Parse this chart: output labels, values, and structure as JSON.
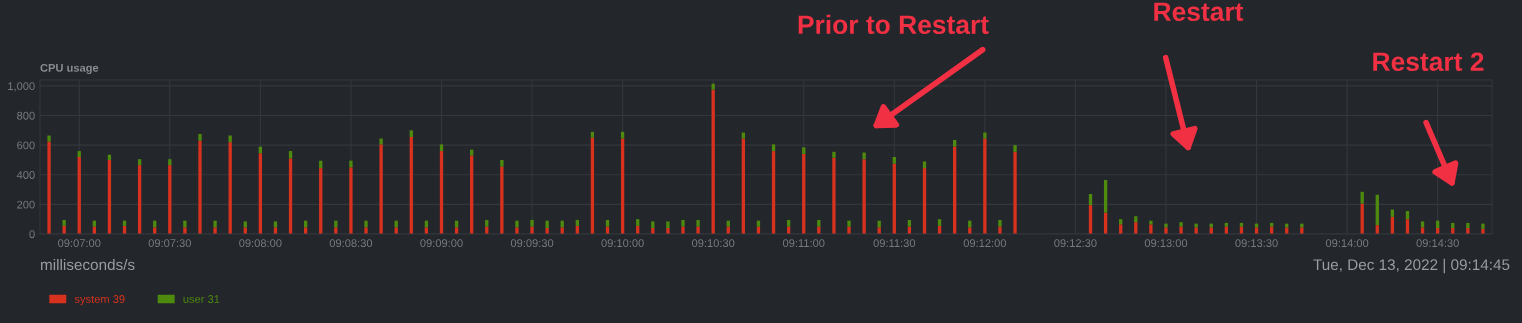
{
  "chart_data": {
    "type": "bar",
    "title": "CPU usage",
    "stacked": true,
    "categories": [
      null,
      null,
      "09:07:00",
      null,
      null,
      null,
      null,
      null,
      "09:07:30",
      null,
      null,
      null,
      null,
      null,
      "09:08:00",
      null,
      null,
      null,
      null,
      null,
      "09:08:30",
      null,
      null,
      null,
      null,
      null,
      "09:09:00",
      null,
      null,
      null,
      null,
      null,
      "09:09:30",
      null,
      null,
      null,
      null,
      null,
      "09:10:00",
      null,
      null,
      null,
      null,
      null,
      "09:10:30",
      null,
      null,
      null,
      null,
      null,
      "09:11:00",
      null,
      null,
      null,
      null,
      null,
      "09:11:30",
      null,
      null,
      null,
      null,
      null,
      "09:12:00",
      null,
      null,
      null,
      null,
      null,
      "09:12:30",
      null,
      null,
      null,
      null,
      null,
      "09:13:00",
      null,
      null,
      null,
      null,
      null,
      "09:13:30",
      null,
      null,
      null,
      null,
      null,
      "09:14:00",
      null,
      null,
      null,
      null,
      null,
      "09:14:30",
      null,
      null,
      null
    ],
    "series": [
      {
        "name": "system 39",
        "color": "#d8321f",
        "values": [
          625,
          55,
          520,
          50,
          500,
          55,
          465,
          45,
          465,
          45,
          630,
          45,
          620,
          45,
          545,
          45,
          510,
          45,
          445,
          45,
          450,
          45,
          605,
          45,
          655,
          45,
          560,
          45,
          530,
          50,
          455,
          45,
          50,
          40,
          45,
          55,
          650,
          50,
          645,
          55,
          40,
          40,
          50,
          50,
          975,
          50,
          645,
          50,
          560,
          50,
          540,
          50,
          515,
          50,
          505,
          45,
          475,
          50,
          445,
          55,
          590,
          45,
          645,
          50,
          555,
          null,
          null,
          null,
          null,
          195,
          145,
          65,
          80,
          65,
          45,
          50,
          45,
          45,
          50,
          50,
          45,
          50,
          45,
          45,
          null,
          null,
          null,
          205,
          60,
          115,
          100,
          45,
          40,
          40,
          40,
          35
        ]
      },
      {
        "name": "user 31",
        "color": "#4e8a0e",
        "values": [
          40,
          40,
          40,
          40,
          35,
          35,
          40,
          45,
          40,
          45,
          45,
          45,
          45,
          40,
          45,
          40,
          50,
          45,
          50,
          45,
          45,
          45,
          40,
          45,
          45,
          45,
          45,
          45,
          40,
          45,
          45,
          45,
          45,
          50,
          45,
          40,
          40,
          45,
          45,
          45,
          45,
          45,
          45,
          45,
          40,
          40,
          40,
          40,
          45,
          45,
          45,
          45,
          40,
          40,
          45,
          45,
          45,
          45,
          45,
          45,
          45,
          45,
          40,
          45,
          45,
          null,
          null,
          null,
          null,
          75,
          220,
          35,
          40,
          25,
          25,
          30,
          25,
          25,
          25,
          25,
          25,
          25,
          25,
          25,
          null,
          null,
          null,
          80,
          205,
          50,
          55,
          40,
          50,
          35,
          35,
          35
        ]
      }
    ],
    "ylim": [
      0,
      1040
    ],
    "yticks": [
      0,
      200,
      400,
      600,
      800,
      {
        "value": 1000,
        "label": "1,000"
      }
    ],
    "grid": true,
    "legend": "bottom left",
    "annotations": [
      "Prior to Restart",
      "Restart",
      "Restart 2",
      "Tue, Dec 13, 2022 | 09:14:45",
      "milliseconds/s"
    ]
  }
}
